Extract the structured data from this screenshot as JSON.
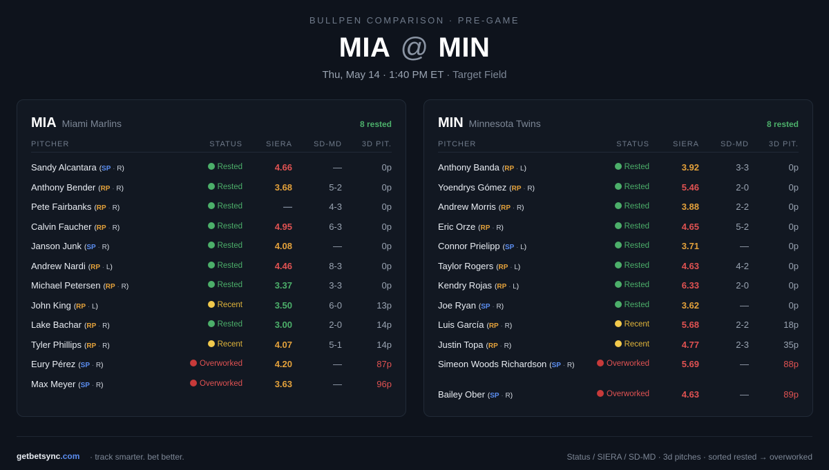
{
  "header": {
    "kicker": "BULLPEN COMPARISON · PRE-GAME",
    "away": "MIA",
    "at": "@",
    "home": "MIN",
    "datetime": "Thu, May 14 · 1:40 PM ET",
    "venue": "· Target Field"
  },
  "columns": {
    "pitcher": "PITCHER",
    "status": "STATUS",
    "siera": "SIERA",
    "sdmd": "SD-MD",
    "pitches": "3D PIT."
  },
  "colors": {
    "rested": "#4caf6a",
    "recent": "#e0b43a",
    "over": "#e05252",
    "siera_orange": "#e3a13b",
    "siera_red": "#e05252",
    "siera_green": "#4caf6a"
  },
  "teams": [
    {
      "abbr": "MIA",
      "name": "Miami Marlins",
      "rested_count": "8 rested",
      "pitchers": [
        {
          "name": "Sandy Alcantara",
          "role": "SP",
          "hand": "R",
          "status": "Rested",
          "siera": "4.66",
          "siera_color": "#e05252",
          "sdmd": "—",
          "pitches": "0p"
        },
        {
          "name": "Anthony Bender",
          "role": "RP",
          "hand": "R",
          "status": "Rested",
          "siera": "3.68",
          "siera_color": "#e3a13b",
          "sdmd": "5-2",
          "pitches": "0p"
        },
        {
          "name": "Pete Fairbanks",
          "role": "RP",
          "hand": "R",
          "status": "Rested",
          "siera": "—",
          "siera_color": "#7d8796",
          "sdmd": "4-3",
          "pitches": "0p"
        },
        {
          "name": "Calvin Faucher",
          "role": "RP",
          "hand": "R",
          "status": "Rested",
          "siera": "4.95",
          "siera_color": "#e05252",
          "sdmd": "6-3",
          "pitches": "0p"
        },
        {
          "name": "Janson Junk",
          "role": "SP",
          "hand": "R",
          "status": "Rested",
          "siera": "4.08",
          "siera_color": "#e3a13b",
          "sdmd": "—",
          "pitches": "0p"
        },
        {
          "name": "Andrew Nardi",
          "role": "RP",
          "hand": "L",
          "status": "Rested",
          "siera": "4.46",
          "siera_color": "#e05252",
          "sdmd": "8-3",
          "pitches": "0p"
        },
        {
          "name": "Michael Petersen",
          "role": "RP",
          "hand": "R",
          "status": "Rested",
          "siera": "3.37",
          "siera_color": "#4caf6a",
          "sdmd": "3-3",
          "pitches": "0p"
        },
        {
          "name": "John King",
          "role": "RP",
          "hand": "L",
          "status": "Recent",
          "siera": "3.50",
          "siera_color": "#4caf6a",
          "sdmd": "6-0",
          "pitches": "13p"
        },
        {
          "name": "Lake Bachar",
          "role": "RP",
          "hand": "R",
          "status": "Rested",
          "siera": "3.00",
          "siera_color": "#4caf6a",
          "sdmd": "2-0",
          "pitches": "14p"
        },
        {
          "name": "Tyler Phillips",
          "role": "RP",
          "hand": "R",
          "status": "Recent",
          "siera": "4.07",
          "siera_color": "#e3a13b",
          "sdmd": "5-1",
          "pitches": "14p"
        },
        {
          "name": "Eury Pérez",
          "role": "SP",
          "hand": "R",
          "status": "Overworked",
          "siera": "4.20",
          "siera_color": "#e3a13b",
          "sdmd": "—",
          "pitches": "87p"
        },
        {
          "name": "Max Meyer",
          "role": "SP",
          "hand": "R",
          "status": "Overworked",
          "siera": "3.63",
          "siera_color": "#e3a13b",
          "sdmd": "—",
          "pitches": "96p"
        }
      ]
    },
    {
      "abbr": "MIN",
      "name": "Minnesota Twins",
      "rested_count": "8 rested",
      "pitchers": [
        {
          "name": "Anthony Banda",
          "role": "RP",
          "hand": "L",
          "status": "Rested",
          "siera": "3.92",
          "siera_color": "#e3a13b",
          "sdmd": "3-3",
          "pitches": "0p"
        },
        {
          "name": "Yoendrys Gómez",
          "role": "RP",
          "hand": "R",
          "status": "Rested",
          "siera": "5.46",
          "siera_color": "#e05252",
          "sdmd": "2-0",
          "pitches": "0p"
        },
        {
          "name": "Andrew Morris",
          "role": "RP",
          "hand": "R",
          "status": "Rested",
          "siera": "3.88",
          "siera_color": "#e3a13b",
          "sdmd": "2-2",
          "pitches": "0p"
        },
        {
          "name": "Eric Orze",
          "role": "RP",
          "hand": "R",
          "status": "Rested",
          "siera": "4.65",
          "siera_color": "#e05252",
          "sdmd": "5-2",
          "pitches": "0p"
        },
        {
          "name": "Connor Prielipp",
          "role": "SP",
          "hand": "L",
          "status": "Rested",
          "siera": "3.71",
          "siera_color": "#e3a13b",
          "sdmd": "—",
          "pitches": "0p"
        },
        {
          "name": "Taylor Rogers",
          "role": "RP",
          "hand": "L",
          "status": "Rested",
          "siera": "4.63",
          "siera_color": "#e05252",
          "sdmd": "4-2",
          "pitches": "0p"
        },
        {
          "name": "Kendry Rojas",
          "role": "RP",
          "hand": "L",
          "status": "Rested",
          "siera": "6.33",
          "siera_color": "#e05252",
          "sdmd": "2-0",
          "pitches": "0p"
        },
        {
          "name": "Joe Ryan",
          "role": "SP",
          "hand": "R",
          "status": "Rested",
          "siera": "3.62",
          "siera_color": "#e3a13b",
          "sdmd": "—",
          "pitches": "0p"
        },
        {
          "name": "Luis García",
          "role": "RP",
          "hand": "R",
          "status": "Recent",
          "siera": "5.68",
          "siera_color": "#e05252",
          "sdmd": "2-2",
          "pitches": "18p"
        },
        {
          "name": "Justin Topa",
          "role": "RP",
          "hand": "R",
          "status": "Recent",
          "siera": "4.77",
          "siera_color": "#e05252",
          "sdmd": "2-3",
          "pitches": "35p"
        },
        {
          "name": "Simeon Woods Richardson",
          "role": "SP",
          "hand": "R",
          "status": "Overworked",
          "siera": "5.69",
          "siera_color": "#e05252",
          "sdmd": "—",
          "pitches": "88p"
        },
        {
          "name": "Bailey Ober",
          "role": "SP",
          "hand": "R",
          "status": "Overworked",
          "siera": "4.63",
          "siera_color": "#e05252",
          "sdmd": "—",
          "pitches": "89p"
        }
      ]
    }
  ],
  "footer": {
    "brand": "getbetsync",
    "brand_tld": ".com",
    "tagline": "· track smarter. bet better.",
    "legend": "Status / SIERA / SD-MD · 3d pitches · sorted rested → overworked"
  }
}
